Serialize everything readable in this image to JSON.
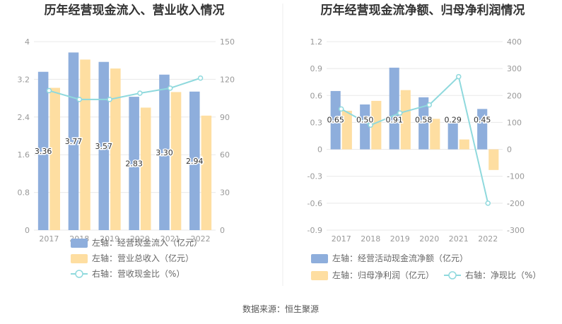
{
  "source": "数据来源：恒生聚源",
  "colors": {
    "bar_blue": "#8eaedc",
    "bar_yellow": "#fedea1",
    "line": "#8fd9dd",
    "grid": "#e8e8e8",
    "divider": "#eeeeee"
  },
  "chart_data": [
    {
      "type": "bar",
      "title": "历年经营现金流入、营业收入情况",
      "categories": [
        "2017",
        "2018",
        "2019",
        "2020",
        "2021",
        "2022"
      ],
      "y_left": {
        "ticks": [
          "4",
          "3.2",
          "2.4",
          "1.6",
          "0.8",
          "0"
        ],
        "ylim": [
          0,
          4
        ]
      },
      "y_right": {
        "ticks": [
          "150",
          "120",
          "90",
          "60",
          "30",
          "0"
        ],
        "ylim": [
          0,
          150
        ]
      },
      "series": [
        {
          "name": "左轴：经营现金流入（亿元）",
          "axis": "left",
          "kind": "bar",
          "values": [
            3.36,
            3.77,
            3.57,
            2.83,
            3.3,
            2.94
          ],
          "labels": [
            "3.36",
            "3.77",
            "3.57",
            "2.83",
            "3.30",
            "2.94"
          ]
        },
        {
          "name": "左轴：营业总收入（亿元）",
          "axis": "left",
          "kind": "bar",
          "values": [
            3.02,
            3.62,
            3.43,
            2.6,
            2.93,
            2.43
          ]
        },
        {
          "name": "右轴：营收现金比（%）",
          "axis": "right",
          "kind": "line",
          "values": [
            111,
            104,
            104,
            109,
            113,
            121
          ]
        }
      ]
    },
    {
      "type": "bar",
      "title": "历年经营现金流净额、归母净利润情况",
      "categories": [
        "2017",
        "2018",
        "2019",
        "2020",
        "2021",
        "2022"
      ],
      "y_left": {
        "ticks": [
          "1.2",
          "0.9",
          "0.6",
          "0.3",
          "0",
          "-0.3",
          "-0.6",
          "-0.9"
        ],
        "ylim": [
          -0.9,
          1.2
        ]
      },
      "y_right": {
        "ticks": [
          "400",
          "300",
          "200",
          "100",
          "0",
          "-100",
          "-200",
          "-300"
        ],
        "ylim": [
          -300,
          400
        ]
      },
      "series": [
        {
          "name": "左轴：经营活动现金流净额（亿元）",
          "axis": "left",
          "kind": "bar",
          "values": [
            0.65,
            0.5,
            0.91,
            0.58,
            0.29,
            0.45
          ],
          "labels": [
            "0.65",
            "0.50",
            "0.91",
            "0.58",
            "0.29",
            "0.45"
          ]
        },
        {
          "name": "左轴：归母净利润（亿元）",
          "axis": "left",
          "kind": "bar",
          "values": [
            0.43,
            0.54,
            0.66,
            0.34,
            0.11,
            -0.23
          ]
        },
        {
          "name": "右轴：净现比（%）",
          "axis": "right",
          "kind": "line",
          "values": [
            150,
            90,
            135,
            165,
            270,
            -200
          ]
        }
      ]
    }
  ]
}
